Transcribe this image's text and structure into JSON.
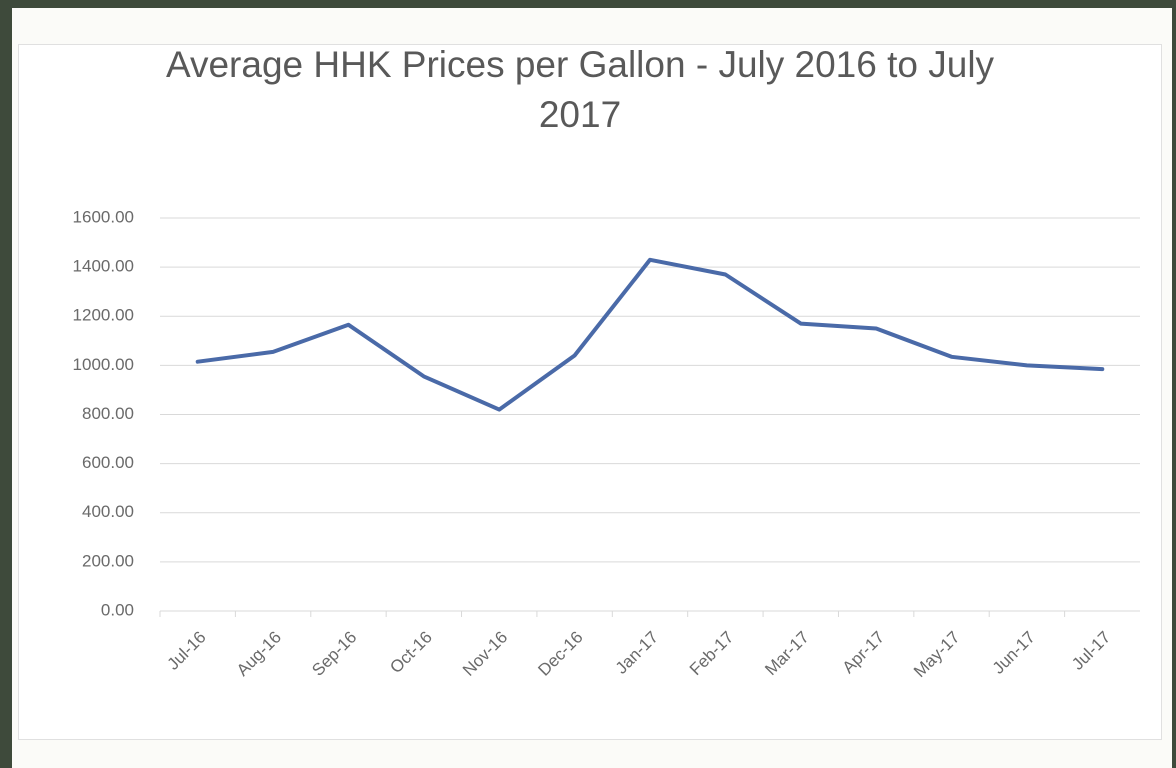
{
  "chart_data": {
    "type": "line",
    "title": "Average HHK Prices per Gallon - July 2016 to July 2017",
    "categories": [
      "Jul-16",
      "Aug-16",
      "Sep-16",
      "Oct-16",
      "Nov-16",
      "Dec-16",
      "Jan-17",
      "Feb-17",
      "Mar-17",
      "Apr-17",
      "May-17",
      "Jun-17",
      "Jul-17"
    ],
    "values": [
      1015,
      1055,
      1165,
      955,
      820,
      1040,
      1430,
      1370,
      1170,
      1150,
      1035,
      1000,
      985
    ],
    "color": "#4a6aa8",
    "ylim": [
      0,
      1600
    ],
    "yticks": [
      {
        "value": 0,
        "label": "0.00"
      },
      {
        "value": 200,
        "label": "200.00"
      },
      {
        "value": 400,
        "label": "400.00"
      },
      {
        "value": 600,
        "label": "600.00"
      },
      {
        "value": 800,
        "label": "800.00"
      },
      {
        "value": 1000,
        "label": "1000.00"
      },
      {
        "value": 1200,
        "label": "1200.00"
      },
      {
        "value": 1400,
        "label": "1400.00"
      },
      {
        "value": 1600,
        "label": "1600.00"
      }
    ],
    "grid": true
  }
}
